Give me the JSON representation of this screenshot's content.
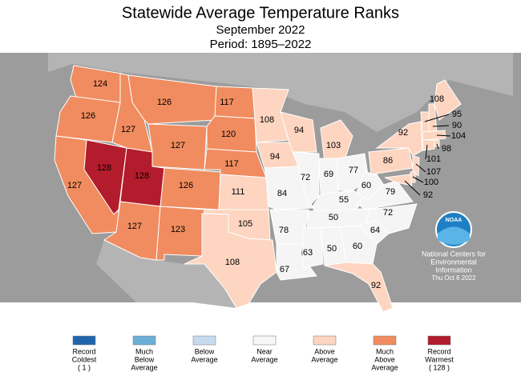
{
  "header": {
    "title": "Statewide Average Temperature Ranks",
    "subtitle": "September 2022",
    "period": "Period: 1895–2022"
  },
  "states": [
    {
      "rank": 124,
      "color": "#f08c5f"
    },
    {
      "rank": 126,
      "color": "#f08c5f"
    },
    {
      "rank": 127,
      "color": "#f08c5f"
    },
    {
      "rank": 128,
      "color": "#b21c2c"
    },
    {
      "rank": 127,
      "color": "#f08c5f"
    },
    {
      "rank": 126,
      "color": "#f08c5f"
    },
    {
      "rank": 127,
      "color": "#f08c5f"
    },
    {
      "rank": 128,
      "color": "#b21c2c"
    },
    {
      "rank": 126,
      "color": "#f08c5f"
    },
    {
      "rank": 127,
      "color": "#f08c5f"
    },
    {
      "rank": 123,
      "color": "#f08c5f"
    },
    {
      "rank": 117,
      "color": "#f08c5f"
    },
    {
      "rank": 120,
      "color": "#f08c5f"
    },
    {
      "rank": 117,
      "color": "#f08c5f"
    },
    {
      "rank": 111,
      "color": "#fdd5c0"
    },
    {
      "rank": 105,
      "color": "#fdd5c0"
    },
    {
      "rank": 108,
      "color": "#fdd5c0"
    },
    {
      "rank": 108,
      "color": "#fdd5c0"
    },
    {
      "rank": 94,
      "color": "#fdd5c0"
    },
    {
      "rank": 84,
      "color": "#f5f5f5"
    },
    {
      "rank": 78,
      "color": "#f5f5f5"
    },
    {
      "rank": 67,
      "color": "#f5f5f5"
    },
    {
      "rank": 94,
      "color": "#fdd5c0"
    },
    {
      "rank": 72,
      "color": "#f5f5f5"
    },
    {
      "rank": 103,
      "color": "#fdd5c0"
    },
    {
      "rank": 69,
      "color": "#f5f5f5"
    },
    {
      "rank": 77,
      "color": "#f5f5f5"
    },
    {
      "rank": 55,
      "color": "#f5f5f5"
    },
    {
      "rank": 50,
      "color": "#f5f5f5"
    },
    {
      "rank": 63,
      "color": "#f5f5f5"
    },
    {
      "rank": 50,
      "color": "#f5f5f5"
    },
    {
      "rank": 60,
      "color": "#f5f5f5"
    },
    {
      "rank": 92,
      "color": "#fdd5c0"
    },
    {
      "rank": 64,
      "color": "#f5f5f5"
    },
    {
      "rank": 72,
      "color": "#f5f5f5"
    },
    {
      "rank": 79,
      "color": "#f5f5f5"
    },
    {
      "rank": 60,
      "color": "#f5f5f5"
    },
    {
      "rank": 86,
      "color": "#fdd5c0"
    },
    {
      "rank": 92,
      "color": "#fdd5c0"
    },
    {
      "rank": 108,
      "color": "#fdd5c0"
    },
    {
      "rank": 95,
      "color": "#fdd5c0"
    },
    {
      "rank": 90,
      "color": "#fdd5c0"
    },
    {
      "rank": 104,
      "color": "#fdd5c0"
    },
    {
      "rank": 98,
      "color": "#fdd5c0"
    },
    {
      "rank": 101,
      "color": "#fdd5c0"
    },
    {
      "rank": 107,
      "color": "#fdd5c0"
    },
    {
      "rank": 100,
      "color": "#fdd5c0"
    },
    {
      "rank": 92,
      "color": "#fdd5c0"
    }
  ],
  "legend": [
    {
      "lines": [
        "Record",
        "Coldest",
        "( 1 )"
      ],
      "color": "#2166ac"
    },
    {
      "lines": [
        "Much",
        "Below",
        "Average"
      ],
      "color": "#6baed6"
    },
    {
      "lines": [
        "Below",
        "Average"
      ],
      "color": "#c6dbef"
    },
    {
      "lines": [
        "Near",
        "Average"
      ],
      "color": "#f7f7f7"
    },
    {
      "lines": [
        "Above",
        "Average"
      ],
      "color": "#fdd5c0"
    },
    {
      "lines": [
        "Much",
        "Above",
        "Average"
      ],
      "color": "#f08c5f"
    },
    {
      "lines": [
        "Record",
        "Warmest",
        "( 128 )"
      ],
      "color": "#b21c2c"
    }
  ],
  "logo": {
    "text": "NOAA"
  },
  "credit": {
    "lines": [
      "National Centers for",
      "Environmental",
      "Information"
    ],
    "date": "Thu Oct  6 2022"
  }
}
